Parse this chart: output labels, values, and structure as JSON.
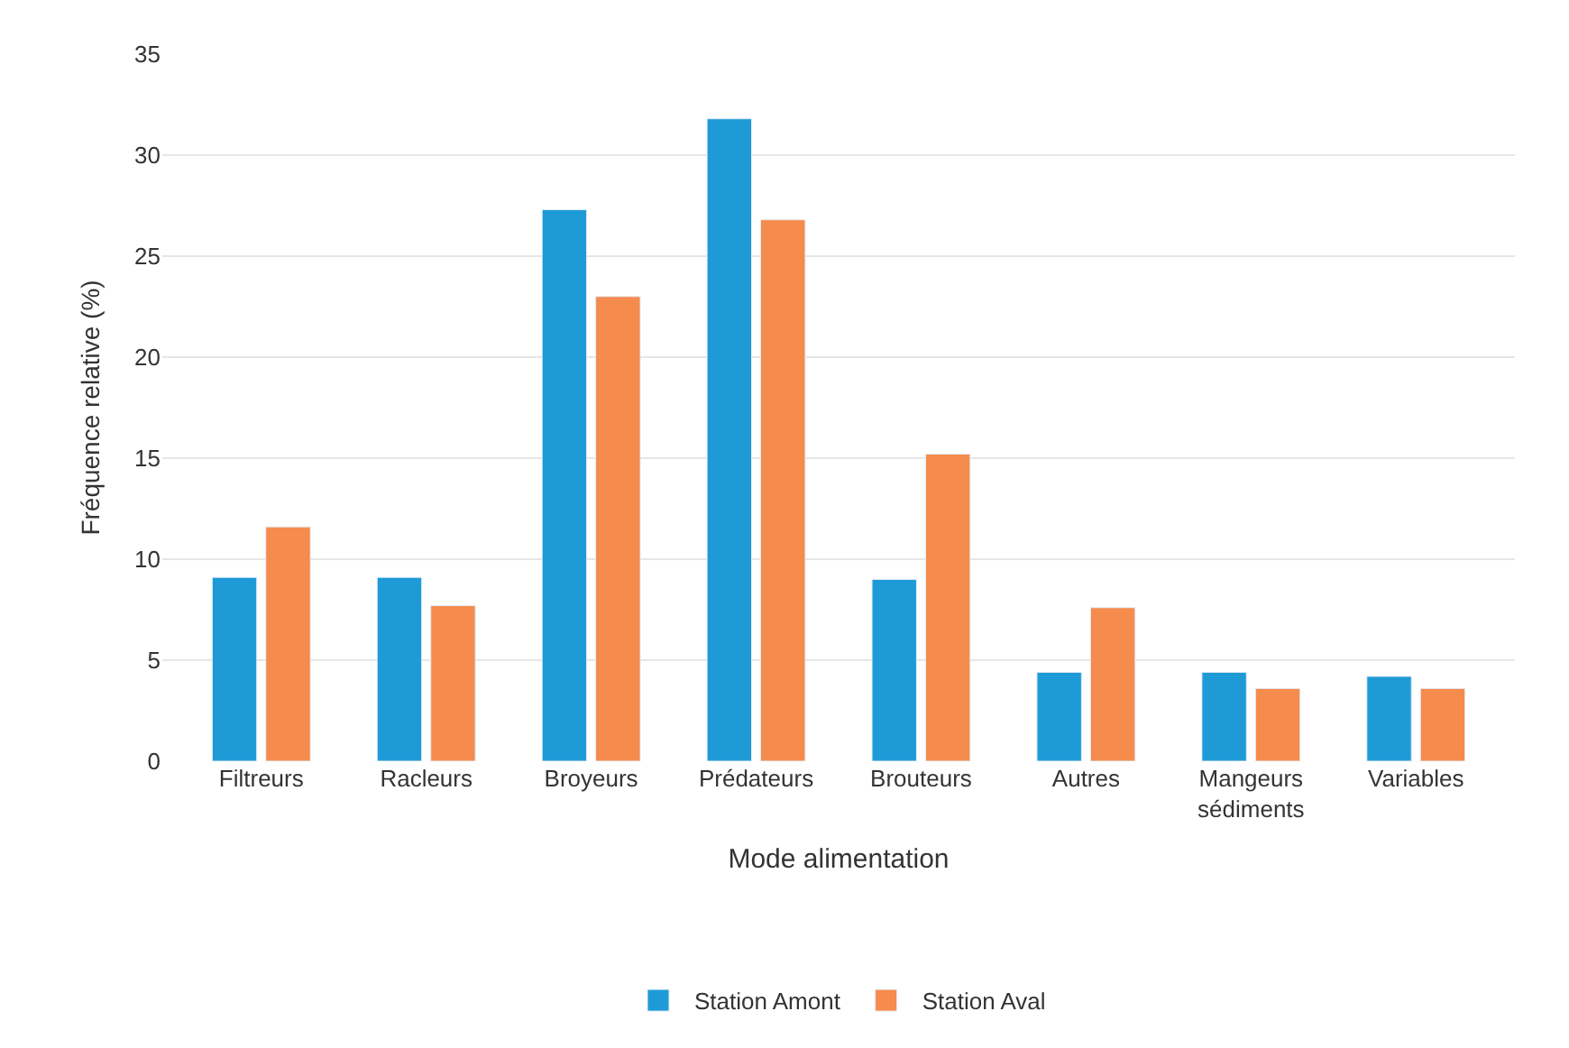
{
  "chart_data": {
    "type": "bar",
    "xlabel": "Mode alimentation",
    "ylabel": "Fréquence relative (%)",
    "categories": [
      "Filtreurs",
      "Racleurs",
      "Broyeurs",
      "Prédateurs",
      "Brouteurs",
      "Autres",
      "Mangeurs sédiments",
      "Variables"
    ],
    "series": [
      {
        "name": "Station Amont",
        "color": "#1e9bd7",
        "values": [
          9.1,
          9.1,
          27.3,
          31.8,
          9.0,
          4.4,
          4.4,
          4.2
        ]
      },
      {
        "name": "Station Aval",
        "color": "#f58b4c",
        "values": [
          11.6,
          7.7,
          23.0,
          26.8,
          15.2,
          7.6,
          3.6,
          3.6
        ]
      }
    ],
    "ylim": [
      0,
      35
    ],
    "yticks": [
      0,
      5,
      10,
      15,
      20,
      25,
      30,
      35
    ],
    "grid": "y",
    "legend": "bottom"
  }
}
